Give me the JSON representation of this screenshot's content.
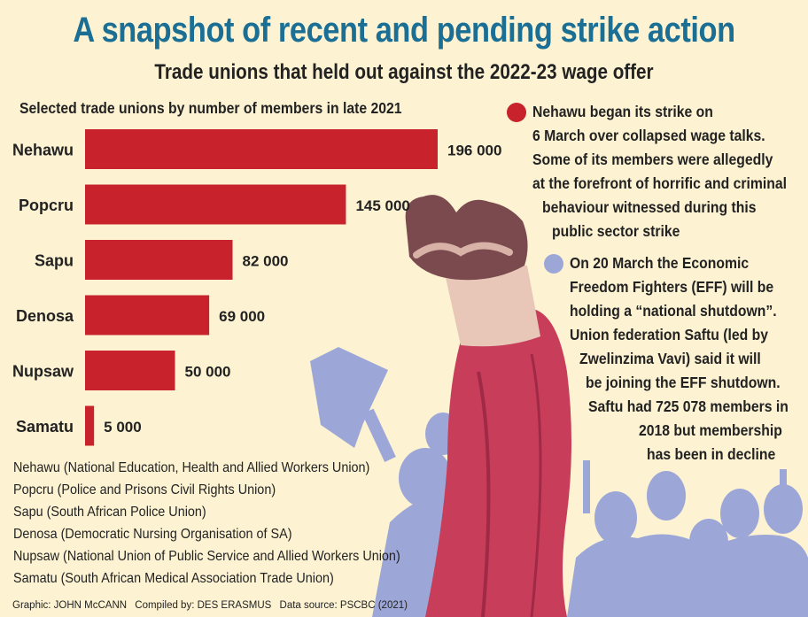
{
  "title": "A snapshot of recent and pending strike action",
  "subtitle": "Trade unions that held out against the 2022-23 wage offer",
  "colors": {
    "title": "#1b6f95",
    "bar": "#c8232c",
    "background": "#fdf3d3",
    "silhouette": "#9ca7d8",
    "arm": "#c73d5a"
  },
  "chart_data": {
    "type": "bar",
    "orientation": "horizontal",
    "title": "Selected trade unions by number of members in late 2021",
    "categories": [
      "Nehawu",
      "Popcru",
      "Sapu",
      "Denosa",
      "Nupsaw",
      "Samatu"
    ],
    "values": [
      196000,
      145000,
      82000,
      69000,
      50000,
      5000
    ],
    "value_labels": [
      "196 000",
      "145 000",
      "82 000",
      "69 000",
      "50 000",
      "5 000"
    ],
    "xlim": [
      0,
      196000
    ],
    "grid": false,
    "legend": "none"
  },
  "bullets": [
    {
      "color": "#c8232c",
      "lines": [
        "Nehawu began its strike on",
        "6 March over collapsed wage talks.",
        "Some of its members were allegedly",
        "at the forefront of horrific and criminal",
        "behaviour witnessed during this",
        "public sector strike"
      ]
    },
    {
      "color": "#9ca7d8",
      "lines": [
        "On 20 March the Economic",
        "Freedom Fighters (EFF) will be",
        "holding a “national shutdown”.",
        "Union federation Saftu (led by",
        "Zwelinzima Vavi) said it will",
        "be joining the EFF shutdown.",
        "Saftu had 725 078 members in",
        "2018 but membership",
        "has been in decline"
      ]
    }
  ],
  "glossary": [
    "Nehawu (National Education, Health and Allied Workers Union)",
    "Popcru (Police and Prisons Civil Rights Union)",
    "Sapu (South African Police Union)",
    "Denosa (Democratic Nursing Organisation of SA)",
    "Nupsaw (National Union of Public Service and Allied Workers Union)",
    "Samatu (South African Medical Association Trade Union)"
  ],
  "credits": {
    "graphic": "Graphic: JOHN McCANN",
    "compiled": "Compiled by: DES ERASMUS",
    "source": "Data source: PSCBC (2021)"
  }
}
